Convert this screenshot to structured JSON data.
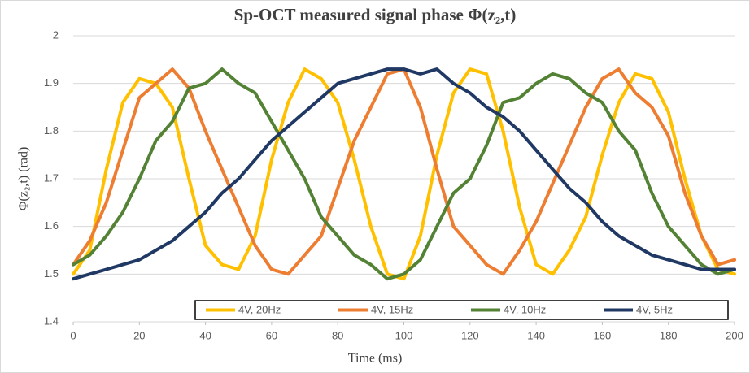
{
  "chart_data": {
    "type": "line",
    "title": "Sp-OCT measured signal phase Φ(z₂,t)",
    "x_label": "Time (ms)",
    "y_label": "Φ(z₂,t) (rad)",
    "x": [
      0,
      5,
      10,
      15,
      20,
      25,
      30,
      35,
      40,
      45,
      50,
      55,
      60,
      65,
      70,
      75,
      80,
      85,
      90,
      95,
      100,
      105,
      110,
      115,
      120,
      125,
      130,
      135,
      140,
      145,
      150,
      155,
      160,
      165,
      170,
      175,
      180,
      185,
      190,
      195,
      200
    ],
    "series": [
      {
        "name": "4V, 20Hz",
        "color": "#ffc000",
        "values": [
          1.5,
          1.55,
          1.72,
          1.86,
          1.91,
          1.9,
          1.85,
          1.7,
          1.56,
          1.52,
          1.51,
          1.58,
          1.74,
          1.86,
          1.93,
          1.91,
          1.86,
          1.74,
          1.6,
          1.5,
          1.49,
          1.58,
          1.75,
          1.88,
          1.93,
          1.92,
          1.8,
          1.64,
          1.52,
          1.5,
          1.55,
          1.62,
          1.75,
          1.86,
          1.92,
          1.91,
          1.84,
          1.7,
          1.58,
          1.51,
          1.5
        ]
      },
      {
        "name": "4V, 15Hz",
        "color": "#ed7d31",
        "values": [
          1.52,
          1.57,
          1.65,
          1.76,
          1.87,
          1.9,
          1.93,
          1.89,
          1.8,
          1.72,
          1.64,
          1.56,
          1.51,
          1.5,
          1.54,
          1.58,
          1.68,
          1.78,
          1.85,
          1.92,
          1.93,
          1.85,
          1.72,
          1.6,
          1.56,
          1.52,
          1.5,
          1.55,
          1.61,
          1.69,
          1.77,
          1.85,
          1.91,
          1.93,
          1.88,
          1.85,
          1.79,
          1.67,
          1.58,
          1.52,
          1.53
        ]
      },
      {
        "name": "4V, 10Hz",
        "color": "#548235",
        "values": [
          1.52,
          1.54,
          1.58,
          1.63,
          1.7,
          1.78,
          1.82,
          1.89,
          1.9,
          1.93,
          1.9,
          1.88,
          1.82,
          1.76,
          1.7,
          1.62,
          1.58,
          1.54,
          1.52,
          1.49,
          1.5,
          1.53,
          1.6,
          1.67,
          1.7,
          1.77,
          1.86,
          1.87,
          1.9,
          1.92,
          1.91,
          1.88,
          1.86,
          1.8,
          1.76,
          1.67,
          1.6,
          1.56,
          1.52,
          1.5,
          1.51
        ]
      },
      {
        "name": "4V, 5Hz",
        "color": "#203864",
        "values": [
          1.49,
          1.5,
          1.51,
          1.52,
          1.53,
          1.55,
          1.57,
          1.6,
          1.63,
          1.67,
          1.7,
          1.74,
          1.78,
          1.81,
          1.84,
          1.87,
          1.9,
          1.91,
          1.92,
          1.93,
          1.93,
          1.92,
          1.93,
          1.9,
          1.88,
          1.85,
          1.83,
          1.8,
          1.76,
          1.72,
          1.68,
          1.65,
          1.61,
          1.58,
          1.56,
          1.54,
          1.53,
          1.52,
          1.51,
          1.51,
          1.51
        ]
      }
    ],
    "xlim": [
      0,
      200
    ],
    "xticks": [
      0,
      20,
      40,
      60,
      80,
      100,
      120,
      140,
      160,
      180,
      200
    ],
    "ylim": [
      1.4,
      2
    ],
    "yticks": [
      1.4,
      1.5,
      1.6,
      1.7,
      1.8,
      1.9,
      2
    ],
    "grid": true
  }
}
